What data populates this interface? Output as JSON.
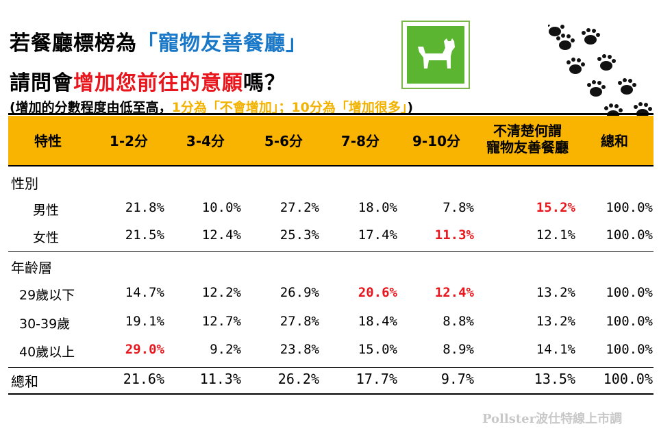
{
  "title": {
    "line1_prefix": "若餐廳標榜為",
    "line1_highlight": "「寵物友善餐廳」",
    "line2_prefix": "請問會",
    "line2_highlight": "增加您前往的意願",
    "line2_suffix": "嗎？",
    "sub_prefix": "(增加的分數程度由低至高，",
    "sub_highlight": "1分為「不會增加」；10分為「增加很多」",
    "sub_suffix": ")"
  },
  "icons": {
    "sign": "dog-sign-icon",
    "paws": "paw-prints-icon"
  },
  "colors": {
    "header_band": "#f8b400",
    "highlight": "#e8161c",
    "title_blue": "#1a78c8",
    "sign_green": "#5cb531",
    "subtitle_gold": "#f2b200"
  },
  "watermark": "Pollster波仕特線上市調",
  "chart_data": {
    "type": "table",
    "columns": [
      "特性",
      "1-2分",
      "3-4分",
      "5-6分",
      "7-8分",
      "9-10分",
      "不清楚何謂\n寵物友善餐廳",
      "總和"
    ],
    "column_header_lines": {
      "col6_line1": "不清楚何謂",
      "col6_line2": "寵物友善餐廳"
    },
    "groups": [
      {
        "name": "性別",
        "rows": [
          {
            "label": "男性",
            "values": [
              "21.8%",
              "10.0%",
              "27.2%",
              "18.0%",
              "7.8%",
              "15.2%",
              "100.0%"
            ],
            "highlight": [
              false,
              false,
              false,
              false,
              false,
              true,
              false
            ]
          },
          {
            "label": "女性",
            "values": [
              "21.5%",
              "12.4%",
              "25.3%",
              "17.4%",
              "11.3%",
              "12.1%",
              "100.0%"
            ],
            "highlight": [
              false,
              false,
              false,
              false,
              true,
              false,
              false
            ]
          }
        ]
      },
      {
        "name": "年齡層",
        "rows": [
          {
            "label": "29歲以下",
            "values": [
              "14.7%",
              "12.2%",
              "26.9%",
              "20.6%",
              "12.4%",
              "13.2%",
              "100.0%"
            ],
            "highlight": [
              false,
              false,
              false,
              true,
              true,
              false,
              false
            ]
          },
          {
            "label": "30-39歲",
            "values": [
              "19.1%",
              "12.7%",
              "27.8%",
              "18.4%",
              "8.8%",
              "13.2%",
              "100.0%"
            ],
            "highlight": [
              false,
              false,
              false,
              false,
              false,
              false,
              false
            ]
          },
          {
            "label": "40歲以上",
            "values": [
              "29.0%",
              "9.2%",
              "23.8%",
              "15.0%",
              "8.9%",
              "14.1%",
              "100.0%"
            ],
            "highlight": [
              true,
              false,
              false,
              false,
              false,
              false,
              false
            ]
          }
        ]
      }
    ],
    "total": {
      "label": "總和",
      "values": [
        "21.6%",
        "11.3%",
        "26.2%",
        "17.7%",
        "9.7%",
        "13.5%",
        "100.0%"
      ]
    }
  }
}
